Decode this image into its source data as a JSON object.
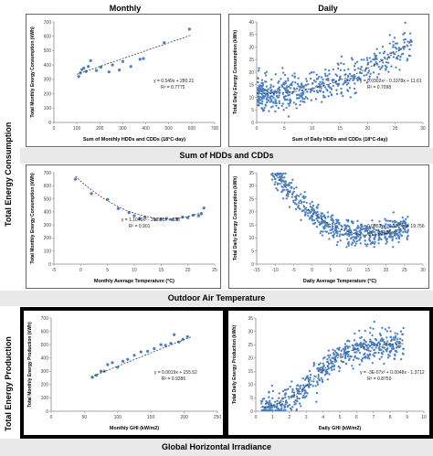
{
  "headers": {
    "monthly": "Monthly",
    "daily": "Daily",
    "section_hdd_cdd": "Sum of HDDs and CDDs",
    "section_temp": "Outdoor Air Temperature",
    "section_ghi": "Global Horizontal Irradiance",
    "row_consumption": "Total Energy Consumption",
    "row_production": "Total Energy Production"
  },
  "chart_data": [
    {
      "id": "m_hdd",
      "type": "scatter",
      "xlabel": "Sum of Monthly HDDs and CDDs (18°C-day)",
      "ylabel": "Total Monthly Energy Consumption (kWh)",
      "xlim": [
        0,
        700
      ],
      "ylim": [
        0,
        700
      ],
      "xticks": [
        0,
        100,
        200,
        300,
        400,
        500,
        600,
        700
      ],
      "yticks": [
        0,
        100,
        200,
        300,
        400,
        500,
        600,
        700
      ],
      "xtick_labels": [
        "0",
        "100",
        "200",
        "300",
        "400",
        "500",
        "600",
        "700"
      ],
      "ytick_labels": [
        "0",
        "100",
        "200",
        "300",
        "400",
        "500",
        "600",
        "700"
      ],
      "points": [
        [
          108,
          320
        ],
        [
          115,
          345
        ],
        [
          122,
          368
        ],
        [
          130,
          378
        ],
        [
          140,
          355
        ],
        [
          150,
          390
        ],
        [
          160,
          430
        ],
        [
          185,
          362
        ],
        [
          205,
          385
        ],
        [
          240,
          352
        ],
        [
          255,
          400
        ],
        [
          285,
          365
        ],
        [
          300,
          425
        ],
        [
          335,
          390
        ],
        [
          375,
          440
        ],
        [
          390,
          445
        ],
        [
          480,
          555
        ],
        [
          590,
          650
        ]
      ],
      "fit": {
        "kind": "poly",
        "coef": [
          280.21,
          0.549
        ],
        "xrange": [
          100,
          600
        ]
      },
      "equation": "y = 0.549x + 280.21",
      "r2": "R² = 0.7775",
      "eq_pos": "right"
    },
    {
      "id": "d_hdd",
      "type": "scatter",
      "xlabel": "Sum of Daily HDDs and CDDs (18°C-day)",
      "ylabel": "Total Daily Energy Consumption (kWh)",
      "xlim": [
        0,
        30
      ],
      "ylim": [
        0,
        40
      ],
      "xticks": [
        0,
        5,
        10,
        15,
        20,
        25,
        30
      ],
      "yticks": [
        0,
        5,
        10,
        15,
        20,
        25,
        30,
        35,
        40
      ],
      "xtick_labels": [
        "0",
        "5",
        "10",
        "15",
        "20",
        "25",
        "30"
      ],
      "ytick_labels": [
        "0",
        "5",
        "10",
        "15",
        "20",
        "25",
        "30",
        "35",
        "40"
      ],
      "generated": {
        "n": 560,
        "xmin": 0.2,
        "xmax": 28,
        "xpow": 1.7,
        "noise": 3.2,
        "seed": 7
      },
      "fit": {
        "kind": "poly",
        "coef": [
          11.61,
          -0.1078,
          0.0302
        ],
        "xrange": [
          0,
          28
        ]
      },
      "equation": "y = 0.0302x² - 0.1078x + 11.61",
      "r2": "R² = 0.7098",
      "eq_pos": "right"
    },
    {
      "id": "m_temp",
      "type": "scatter",
      "xlabel": "Monthly Average Temperature (°C)",
      "ylabel": "Total Monthly Energy Consumption (kWh)",
      "xlim": [
        -5,
        25
      ],
      "ylim": [
        0,
        700
      ],
      "xticks": [
        -5,
        0,
        5,
        10,
        15,
        20,
        25
      ],
      "yticks": [
        0,
        100,
        200,
        300,
        400,
        500,
        600,
        700
      ],
      "xtick_labels": [
        "-5",
        "0",
        "5",
        "10",
        "15",
        "20",
        "25"
      ],
      "ytick_labels": [
        "0",
        "100",
        "200",
        "300",
        "400",
        "500",
        "600",
        "700"
      ],
      "points": [
        [
          -1,
          650
        ],
        [
          2,
          540
        ],
        [
          5,
          495
        ],
        [
          7,
          425
        ],
        [
          9,
          395
        ],
        [
          10,
          370
        ],
        [
          11,
          350
        ],
        [
          12,
          360
        ],
        [
          14,
          340
        ],
        [
          15,
          345
        ],
        [
          16,
          350
        ],
        [
          17,
          340
        ],
        [
          18,
          345
        ],
        [
          19,
          360
        ],
        [
          20,
          355
        ],
        [
          21,
          375
        ],
        [
          22,
          370
        ],
        [
          22.5,
          385
        ],
        [
          23,
          430
        ]
      ],
      "fit": {
        "kind": "poly",
        "coef": [
          635,
          -35.601,
          1.1046
        ],
        "xrange": [
          -1,
          23
        ]
      },
      "equation": "y = 1.1046x² - 35.601x + 635",
      "r2": "R² = 0.901",
      "eq_pos": "center"
    },
    {
      "id": "d_temp",
      "type": "scatter",
      "xlabel": "Daily Average Temperature (°C)",
      "ylabel": "Total Daily Energy Consumption (kWh)",
      "xlim": [
        -15,
        30
      ],
      "ylim": [
        0,
        35
      ],
      "xticks": [
        -15,
        -10,
        -5,
        0,
        5,
        10,
        15,
        20,
        25,
        30
      ],
      "yticks": [
        0,
        5,
        10,
        15,
        20,
        25,
        30,
        35
      ],
      "xtick_labels": [
        "-15",
        "-10",
        "-5",
        "0",
        "5",
        "10",
        "15",
        "20",
        "25",
        "30"
      ],
      "ytick_labels": [
        "0",
        "5",
        "10",
        "15",
        "20",
        "25",
        "30",
        "35"
      ],
      "generated": {
        "n": 560,
        "xmin": -11,
        "xmax": 26,
        "xpow": 0.85,
        "noise": 2.6,
        "seed": 11
      },
      "fit": {
        "kind": "poly",
        "coef": [
          19.756,
          -1.1074,
          0.0353
        ],
        "xrange": [
          -10,
          26
        ]
      },
      "equation": "y = 0.0353x² - 1.1074x + 19.756",
      "r2": "R² = 0.7586",
      "eq_pos": "right"
    },
    {
      "id": "m_ghi",
      "type": "scatter",
      "xlabel": "Monthly GHI (kW/m2)",
      "ylabel": "Total Monthly Energy Production (kWh)",
      "xlim": [
        0,
        250
      ],
      "ylim": [
        0,
        700
      ],
      "xticks": [
        0,
        50,
        100,
        150,
        200,
        250
      ],
      "yticks": [
        0,
        100,
        200,
        300,
        400,
        500,
        600,
        700
      ],
      "xtick_labels": [
        "0",
        "50",
        "100",
        "150",
        "200",
        "250"
      ],
      "ytick_labels": [
        "0",
        "100",
        "200",
        "300",
        "400",
        "500",
        "600",
        "700"
      ],
      "points": [
        [
          62,
          255
        ],
        [
          68,
          270
        ],
        [
          75,
          300
        ],
        [
          80,
          300
        ],
        [
          85,
          350
        ],
        [
          92,
          365
        ],
        [
          100,
          330
        ],
        [
          108,
          375
        ],
        [
          115,
          390
        ],
        [
          125,
          420
        ],
        [
          135,
          445
        ],
        [
          145,
          450
        ],
        [
          155,
          470
        ],
        [
          165,
          500
        ],
        [
          172,
          495
        ],
        [
          180,
          510
        ],
        [
          185,
          575
        ],
        [
          192,
          520
        ],
        [
          198,
          540
        ],
        [
          205,
          560
        ]
      ],
      "fit": {
        "kind": "poly",
        "coef": [
          155.52,
          0.0019
        ],
        "xrange": [
          60,
          210
        ]
      },
      "fit_override": [
        [
          60,
          258
        ],
        [
          210,
          558
        ]
      ],
      "equation": "y = 0.0019x + 155.52",
      "r2": "R² = 0.9286",
      "eq_pos": "right"
    },
    {
      "id": "d_ghi",
      "type": "scatter",
      "xlabel": "Daily GHI (kW/m2)",
      "ylabel": "Total Daily Energy Production (kWh)",
      "xlim": [
        0,
        10
      ],
      "ylim": [
        0,
        35
      ],
      "xticks": [
        0,
        1,
        2,
        3,
        4,
        5,
        6,
        7,
        8,
        9,
        10
      ],
      "yticks": [
        0,
        5,
        10,
        15,
        20,
        25,
        30,
        35
      ],
      "xtick_labels": [
        "0",
        "1",
        "2",
        "3",
        "4",
        "5",
        "6",
        "7",
        "8",
        "9",
        "10"
      ],
      "ytick_labels": [
        "0",
        "5",
        "10",
        "15",
        "20",
        "25",
        "30",
        "35"
      ],
      "generated": {
        "n": 560,
        "xmin": 0.3,
        "xmax": 8.8,
        "xpow": 1.0,
        "noise": 2.6,
        "seed": 23
      },
      "fit": {
        "kind": "sat",
        "xrange": [
          0.3,
          8.8
        ]
      },
      "equation": "y = -3E-07x³ + 0.0048x - 1.3712",
      "r2": "R² = 0.8759",
      "eq_pos": "right"
    }
  ]
}
